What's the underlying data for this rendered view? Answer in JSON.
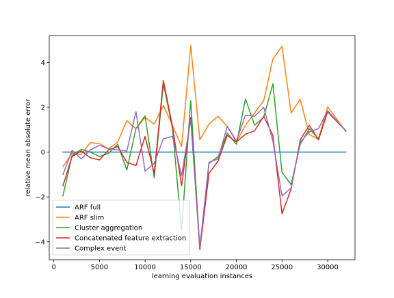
{
  "chart_data": {
    "type": "line",
    "title": "",
    "xlabel": "learning evaluation instances",
    "ylabel": "relative mean absolute error",
    "xlim": [
      -500,
      33000
    ],
    "ylim": [
      -4.8,
      5.2
    ],
    "xticks": [
      0,
      5000,
      10000,
      15000,
      20000,
      25000,
      30000
    ],
    "yticks": [
      -4,
      -2,
      0,
      2,
      4
    ],
    "xtick_labels": [
      "0",
      "5000",
      "10000",
      "15000",
      "20000",
      "25000",
      "30000"
    ],
    "ytick_labels": [
      "−4",
      "−2",
      "0",
      "2",
      "4"
    ],
    "grid": false,
    "legend_position": "lower-left",
    "x": [
      1000,
      2000,
      3000,
      4000,
      5000,
      6000,
      7000,
      8000,
      9000,
      10000,
      11000,
      12000,
      13000,
      14000,
      15000,
      16000,
      17000,
      18000,
      19000,
      20000,
      21000,
      22000,
      23000,
      24000,
      25000,
      26000,
      27000,
      28000,
      29000,
      30000,
      32000
    ],
    "series": [
      {
        "name": "ARF full",
        "color": "#1f77b4",
        "values": [
          0,
          0,
          0,
          0,
          0,
          0,
          0,
          0,
          0,
          0,
          0,
          0,
          0,
          0,
          0,
          0,
          0,
          0,
          0,
          0,
          0,
          0,
          0,
          0,
          0,
          0,
          0,
          0,
          0,
          0,
          0
        ]
      },
      {
        "name": "ARF slim",
        "color": "#ff7f0e",
        "values": [
          -0.65,
          -0.05,
          -0.1,
          0.42,
          0.38,
          0.15,
          0.45,
          1.4,
          1.05,
          1.55,
          1.25,
          2.08,
          1.2,
          0.25,
          4.75,
          0.55,
          1.25,
          1.6,
          1.15,
          0.45,
          1.2,
          1.75,
          2.3,
          4.15,
          4.72,
          1.75,
          2.35,
          0.78,
          0.58,
          2.02,
          0.92
        ]
      },
      {
        "name": "Cluster aggregation",
        "color": "#2ca02c",
        "values": [
          -1.95,
          -0.15,
          0.12,
          0.0,
          -0.2,
          -0.05,
          0.35,
          -0.8,
          1.05,
          1.62,
          -1.15,
          3.05,
          1.08,
          -3.5,
          2.3,
          -4.3,
          -0.5,
          -0.2,
          0.85,
          0.35,
          2.37,
          1.2,
          1.55,
          3.05,
          -0.9,
          -1.45,
          0.35,
          1.05,
          0.6,
          1.8,
          0.95
        ]
      },
      {
        "name": "Concatenated feature extraction",
        "color": "#d62728",
        "values": [
          -1.5,
          -0.2,
          0.05,
          -0.25,
          -0.35,
          0.1,
          0.25,
          -0.45,
          -0.6,
          0.7,
          -0.95,
          3.2,
          1.15,
          -1.5,
          1.55,
          -4.35,
          -0.95,
          -0.4,
          0.75,
          0.45,
          0.8,
          0.95,
          1.6,
          0.75,
          -2.75,
          -1.65,
          0.55,
          1.2,
          0.55,
          1.8,
          0.95
        ]
      },
      {
        "name": "Complex event",
        "color": "#9467bd",
        "values": [
          -1.0,
          0.08,
          -0.3,
          0.1,
          0.3,
          0.15,
          0.1,
          0.05,
          1.8,
          -0.85,
          -0.5,
          0.6,
          0.7,
          -1.05,
          1.45,
          -4.25,
          -0.45,
          -0.3,
          1.15,
          0.5,
          1.65,
          1.6,
          2.0,
          0.5,
          -1.95,
          -1.6,
          0.45,
          0.9,
          1.05,
          1.85,
          0.95
        ]
      }
    ]
  }
}
